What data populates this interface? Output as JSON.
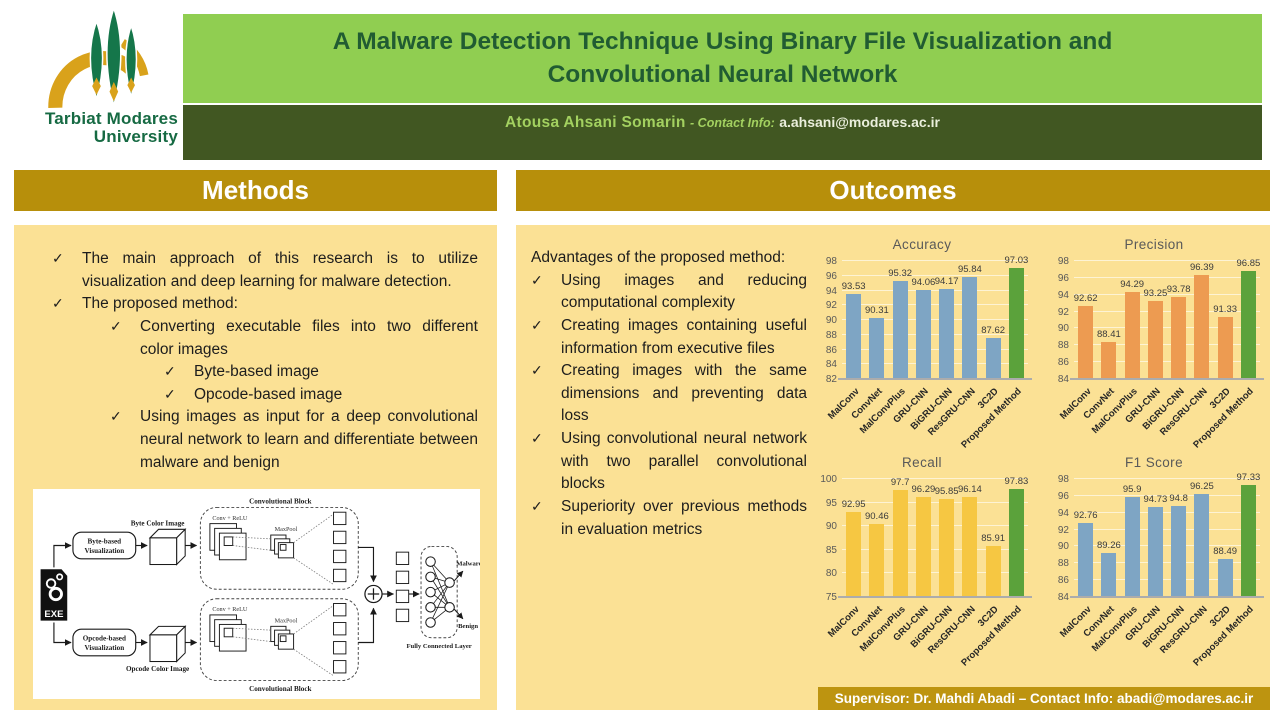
{
  "header": {
    "logo_line1": "Tarbiat Modares",
    "logo_line2": "University",
    "title_line1": "A Malware Detection Technique Using Binary File Visualization and",
    "title_line2": "Convolutional Neural Network",
    "author": "Atousa  Ahsani  Somarin",
    "contact_label": "- Contact Info:",
    "contact_email": "a.ahsani@modares.ac.ir"
  },
  "methods": {
    "title": "Methods",
    "bullets": [
      {
        "level": 1,
        "text": "The main approach of this research is to utilize visualization and deep learning for malware detection."
      },
      {
        "level": 1,
        "text": "The proposed method:"
      },
      {
        "level": 2,
        "text": "Converting executable files into two different color images"
      },
      {
        "level": 3,
        "text": "Byte-based image"
      },
      {
        "level": 3,
        "text": "Opcode-based image"
      },
      {
        "level": 2,
        "text": "Using images as input for a deep convolutional neural network to learn and differentiate between malware and benign"
      }
    ],
    "diagram": {
      "exe": "EXE",
      "byte_vis1": "Byte-based",
      "byte_vis2": "Visualization",
      "opcode_vis1": "Opcode-based",
      "opcode_vis2": "Visualization",
      "byte_img": "Byte Color Image",
      "opcode_img": "Opcode Color Image",
      "conv_block": "Convolutional Block",
      "conv_relu": "Conv + ReLU",
      "maxpool": "MaxPool",
      "fc_layer": "Fully Connected Layer",
      "malware": "Malware",
      "benign": "Benign"
    }
  },
  "outcomes": {
    "title": "Outcomes",
    "intro": "Advantages of the proposed method:",
    "bullets": [
      {
        "level": 1,
        "text": "Using images and reducing computational complexity"
      },
      {
        "level": 1,
        "text": "Creating images containing useful information from executive files"
      },
      {
        "level": 1,
        "text": "Creating images with the same dimensions and preventing data loss"
      },
      {
        "level": 1,
        "text": "Using convolutional neural network with two parallel convolutional blocks"
      },
      {
        "level": 1,
        "text": "Superiority over previous methods in evaluation metrics"
      }
    ],
    "supervisor": "Supervisor: Dr.  Mahdi Abadi – Contact Info: abadi@modares.ac.ir"
  },
  "chart_data": [
    {
      "type": "bar",
      "title": "Accuracy",
      "categories": [
        "MalConv",
        "ConvNet",
        "MalConvPlus",
        "GRU-CNN",
        "BiGRU-CNN",
        "ResGRU-CNN",
        "3C2D",
        "Proposed Method"
      ],
      "values": [
        93.53,
        90.31,
        95.32,
        94.06,
        94.17,
        95.84,
        87.62,
        97.03
      ],
      "ylim": [
        82,
        98
      ],
      "ytick_step": 2,
      "bar_color": "#7ea5c4",
      "highlight_color": "#5ba23b",
      "highlight_index": 7,
      "grid": true,
      "legend": "none"
    },
    {
      "type": "bar",
      "title": "Precision",
      "categories": [
        "MalConv",
        "ConvNet",
        "MalConvPlus",
        "GRU-CNN",
        "BiGRU-CNN",
        "ResGRU-CNN",
        "3C2D",
        "Proposed Method"
      ],
      "values": [
        92.62,
        88.41,
        94.29,
        93.25,
        93.78,
        96.39,
        91.33,
        96.85
      ],
      "ylim": [
        84,
        98
      ],
      "ytick_step": 2,
      "bar_color": "#ed9b51",
      "highlight_color": "#5ba23b",
      "highlight_index": 7,
      "grid": true,
      "legend": "none"
    },
    {
      "type": "bar",
      "title": "Recall",
      "categories": [
        "MalConv",
        "ConvNet",
        "MalConvPlus",
        "GRU-CNN",
        "BiGRU-CNN",
        "ResGRU-CNN",
        "3C2D",
        "Proposed Method"
      ],
      "values": [
        92.95,
        90.46,
        97.7,
        96.29,
        95.85,
        96.14,
        85.91,
        97.83
      ],
      "ylim": [
        75,
        100
      ],
      "ytick_step": 5,
      "bar_color": "#f6c742",
      "highlight_color": "#5ba23b",
      "highlight_index": 7,
      "grid": true,
      "legend": "none"
    },
    {
      "type": "bar",
      "title": "F1 Score",
      "categories": [
        "MalConv",
        "ConvNet",
        "MalConvPlus",
        "GRU-CNN",
        "BiGRU-CNN",
        "ResGRU-CNN",
        "3C2D",
        "Proposed Method"
      ],
      "values": [
        92.76,
        89.26,
        95.9,
        94.73,
        94.8,
        96.25,
        88.49,
        97.33
      ],
      "ylim": [
        84,
        98
      ],
      "ytick_step": 2,
      "bar_color": "#7ea5c4",
      "highlight_color": "#5ba23b",
      "highlight_index": 7,
      "grid": true,
      "legend": "none"
    }
  ],
  "colors": {
    "light_green": "#90ce51",
    "dark_green": "#415722",
    "title_green": "#215c32",
    "gold": "#b78f0b",
    "panel_yellow": "#fbe195",
    "bar_blue": "#7ea5c4",
    "bar_orange": "#ed9b51",
    "bar_yellow": "#f6c742",
    "bar_green": "#5ba23b"
  }
}
